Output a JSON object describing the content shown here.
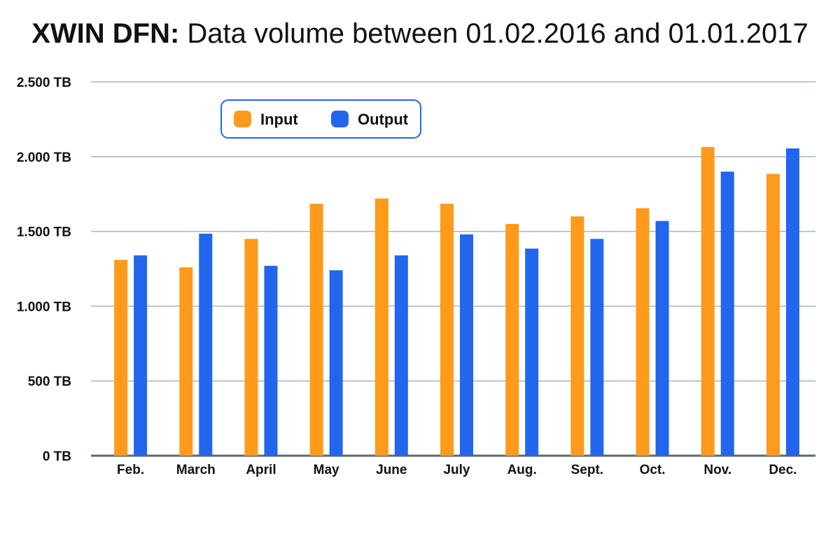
{
  "chart_data": {
    "type": "bar",
    "title_bold": "XWIN DFN:",
    "title_rest": "Data volume between 01.02.2016 and 01.01.2017",
    "xlabel": "",
    "ylabel": "",
    "unit": "TB",
    "ylim": [
      0,
      2500
    ],
    "yticks": [
      0,
      500,
      1000,
      1500,
      2000,
      2500
    ],
    "ytick_labels": [
      "0 TB",
      "500 TB",
      "1.000 TB",
      "1.500 TB",
      "2.000 TB",
      "2.500 TB"
    ],
    "categories": [
      "Feb.",
      "March",
      "April",
      "May",
      "June",
      "July",
      "Aug.",
      "Sept.",
      "Oct.",
      "Nov.",
      "Dec."
    ],
    "series": [
      {
        "name": "Input",
        "color": "#FF9A1A",
        "values": [
          1310,
          1260,
          1450,
          1685,
          1720,
          1685,
          1550,
          1600,
          1655,
          2065,
          1885
        ]
      },
      {
        "name": "Output",
        "color": "#2266EE",
        "values": [
          1340,
          1485,
          1270,
          1240,
          1340,
          1480,
          1385,
          1450,
          1570,
          1900,
          2055
        ]
      }
    ],
    "grid": true,
    "legend_position": "top-left"
  }
}
